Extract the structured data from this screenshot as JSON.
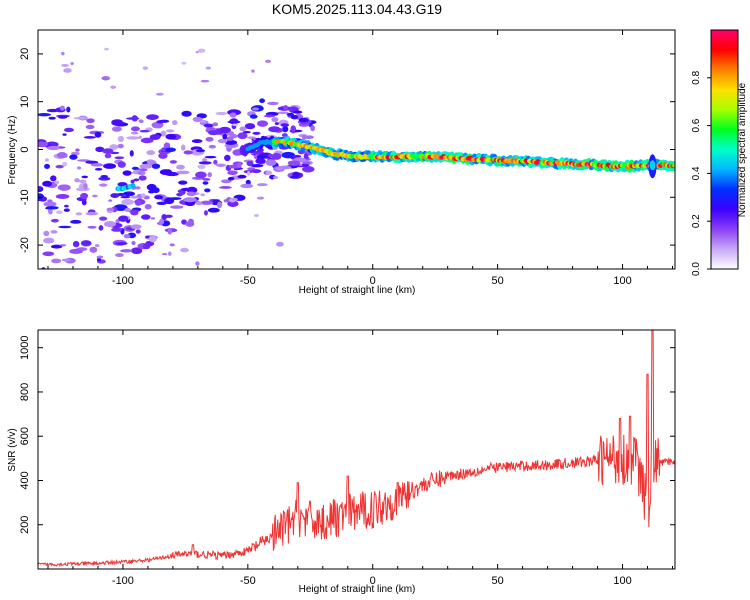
{
  "title": "KOM5.2025.113.04.43.G19",
  "chart_data": [
    {
      "type": "heatmap",
      "xlabel": "Height of straight line (km)",
      "ylabel": "Frequency (Hz)",
      "xlim": [
        -134,
        121
      ],
      "ylim": [
        -25,
        25
      ],
      "xticks": [
        -100,
        -50,
        0,
        50,
        100
      ],
      "yticks": [
        -20,
        -10,
        0,
        10,
        20
      ],
      "colorbar": {
        "label": "Normalized spectral amplitude",
        "range": [
          0,
          1
        ],
        "ticks": [
          "0.0",
          "0.2",
          "0.4",
          "0.6",
          "0.8"
        ],
        "colors": [
          "#ffffff",
          "#c7a8f5",
          "#8a3ff5",
          "#3a00ff",
          "#0030ff",
          "#00b6ff",
          "#00ffc8",
          "#00ff20",
          "#a8ff00",
          "#ffe000",
          "#ff8000",
          "#ff0000",
          "#ff0070"
        ]
      },
      "ridge": [
        [
          -100,
          -8.2
        ],
        [
          -80,
          -5
        ],
        [
          -65,
          -3
        ],
        [
          -50,
          0
        ],
        [
          -45,
          1.5
        ],
        [
          -35,
          1.6
        ],
        [
          -25,
          0.5
        ],
        [
          -15,
          -1
        ],
        [
          -5,
          -1.5
        ],
        [
          10,
          -1.5
        ],
        [
          25,
          -1.5
        ],
        [
          40,
          -2
        ],
        [
          60,
          -2.5
        ],
        [
          80,
          -3
        ],
        [
          100,
          -3.5
        ],
        [
          112,
          -3.3
        ],
        [
          121,
          -3.3
        ]
      ]
    },
    {
      "type": "line",
      "xlabel": "Height of straight line (km)",
      "ylabel": "SNR (v/v)",
      "xlim": [
        -134,
        121
      ],
      "ylim": [
        0,
        1080
      ],
      "xticks": [
        -100,
        -50,
        0,
        50,
        100
      ],
      "yticks": [
        200,
        400,
        600,
        800,
        1000
      ],
      "color": "#ee3333",
      "trend": [
        [
          -134,
          20
        ],
        [
          -110,
          25
        ],
        [
          -90,
          40
        ],
        [
          -75,
          70
        ],
        [
          -60,
          60
        ],
        [
          -50,
          80
        ],
        [
          -40,
          150
        ],
        [
          -30,
          230
        ],
        [
          -20,
          210
        ],
        [
          -10,
          250
        ],
        [
          0,
          270
        ],
        [
          10,
          320
        ],
        [
          20,
          380
        ],
        [
          30,
          420
        ],
        [
          40,
          440
        ],
        [
          50,
          460
        ],
        [
          60,
          465
        ],
        [
          70,
          470
        ],
        [
          80,
          480
        ],
        [
          90,
          490
        ],
        [
          95,
          500
        ],
        [
          100,
          500
        ],
        [
          105,
          500
        ],
        [
          108,
          380
        ],
        [
          110,
          250
        ],
        [
          112,
          480
        ],
        [
          121,
          485
        ]
      ],
      "spikes": [
        [
          112,
          1080
        ],
        [
          110,
          880
        ],
        [
          103,
          690
        ],
        [
          99,
          680
        ],
        [
          -30,
          390
        ],
        [
          -10,
          420
        ],
        [
          10,
          390
        ],
        [
          -72,
          110
        ]
      ]
    }
  ]
}
